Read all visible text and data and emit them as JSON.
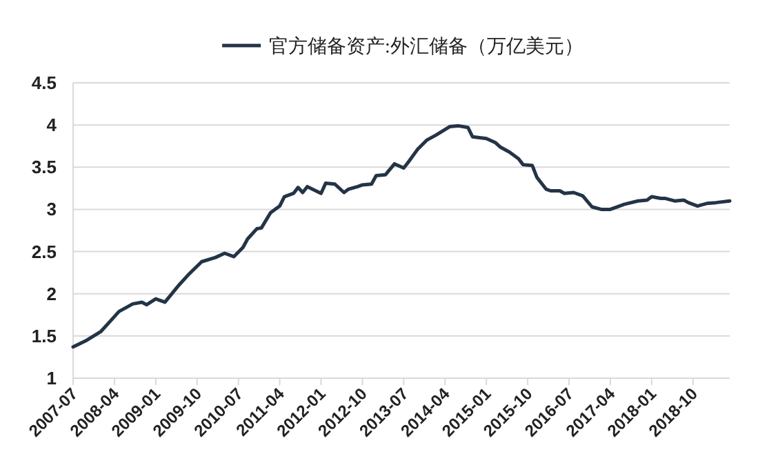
{
  "chart_data": {
    "type": "line",
    "x": [
      "2007-07",
      "2007-10",
      "2008-01",
      "2008-03",
      "2008-05",
      "2008-08",
      "2008-10",
      "2008-11",
      "2009-01",
      "2009-03",
      "2009-06",
      "2009-08",
      "2009-11",
      "2010-02",
      "2010-04",
      "2010-06",
      "2010-08",
      "2010-09",
      "2010-11",
      "2010-12",
      "2011-02",
      "2011-04",
      "2011-05",
      "2011-07",
      "2011-08",
      "2011-09",
      "2011-10",
      "2012-01",
      "2012-02",
      "2012-04",
      "2012-06",
      "2012-07",
      "2012-09",
      "2012-10",
      "2012-12",
      "2013-01",
      "2013-03",
      "2013-05",
      "2013-07",
      "2013-08",
      "2013-10",
      "2013-12",
      "2014-02",
      "2014-05",
      "2014-07",
      "2014-09",
      "2014-10",
      "2015-01",
      "2015-03",
      "2015-04",
      "2015-06",
      "2015-08",
      "2015-09",
      "2015-11",
      "2015-12",
      "2016-02",
      "2016-03",
      "2016-05",
      "2016-06",
      "2016-08",
      "2016-10",
      "2016-12",
      "2017-02",
      "2017-04",
      "2017-06",
      "2017-07",
      "2017-10",
      "2017-12",
      "2018-01",
      "2018-03",
      "2018-04",
      "2018-06",
      "2018-08",
      "2018-09",
      "2018-11",
      "2019-01",
      "2019-03",
      "2019-06"
    ],
    "series": [
      {
        "name": "官方储备资产:外汇储备（万亿美元）",
        "color": "#243447",
        "values": [
          1.37,
          1.45,
          1.55,
          1.67,
          1.79,
          1.88,
          1.9,
          1.87,
          1.94,
          1.9,
          2.1,
          2.22,
          2.38,
          2.43,
          2.48,
          2.44,
          2.55,
          2.65,
          2.77,
          2.78,
          2.96,
          3.04,
          3.15,
          3.19,
          3.26,
          3.2,
          3.27,
          3.19,
          3.31,
          3.3,
          3.2,
          3.24,
          3.27,
          3.29,
          3.3,
          3.4,
          3.41,
          3.54,
          3.49,
          3.56,
          3.71,
          3.82,
          3.88,
          3.98,
          3.99,
          3.97,
          3.86,
          3.84,
          3.79,
          3.74,
          3.68,
          3.6,
          3.53,
          3.52,
          3.38,
          3.24,
          3.22,
          3.22,
          3.19,
          3.2,
          3.16,
          3.03,
          3.0,
          3.0,
          3.04,
          3.06,
          3.1,
          3.11,
          3.15,
          3.13,
          3.13,
          3.1,
          3.11,
          3.08,
          3.04,
          3.07,
          3.08,
          3.1
        ]
      }
    ],
    "xlim": [
      "2007-07",
      "2019-06"
    ],
    "xticks": [
      "2007-07",
      "2008-04",
      "2009-01",
      "2009-10",
      "2010-07",
      "2011-04",
      "2012-01",
      "2012-10",
      "2013-07",
      "2014-04",
      "2015-01",
      "2015-10",
      "2016-07",
      "2017-04",
      "2018-01",
      "2018-10"
    ],
    "ylim": [
      1,
      4.5
    ],
    "yticks": [
      1,
      1.5,
      2,
      2.5,
      3,
      3.5,
      4,
      4.5
    ],
    "grid": "y",
    "legend": "top"
  }
}
